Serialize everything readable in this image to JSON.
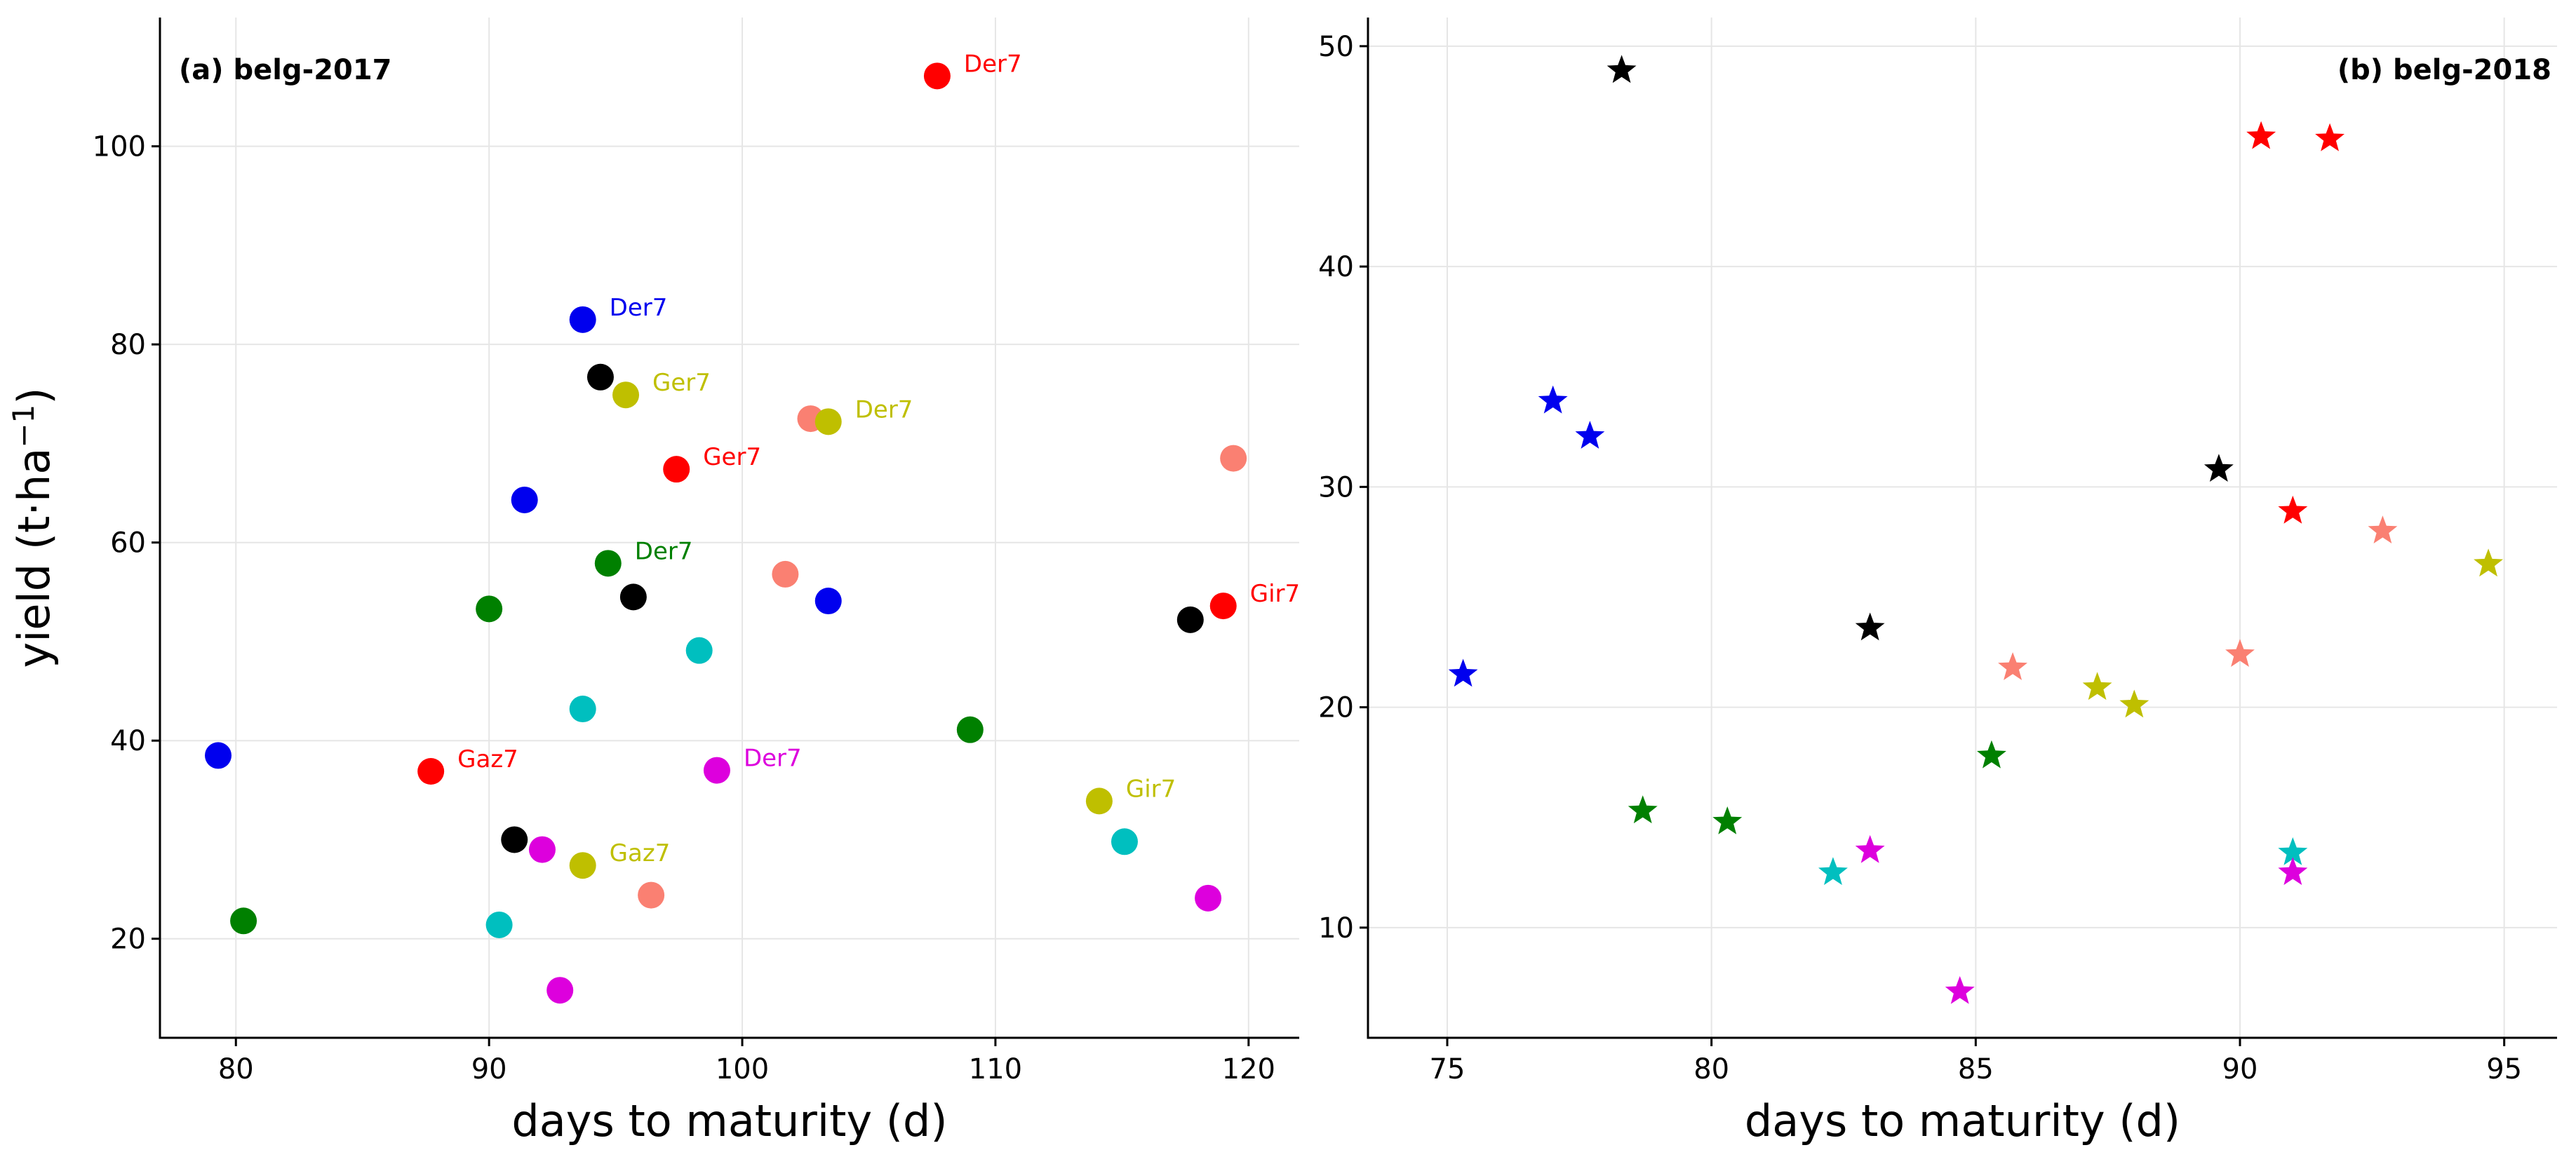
{
  "chart_data": [
    {
      "type": "scatter",
      "title": "(a) belg-2017",
      "xlabel": "days to maturity (d)",
      "ylabel": "yield (t·ha",
      "ylabel_sup": "−1",
      "ylabel_close": ")",
      "xlim": [
        77,
        122
      ],
      "ylim": [
        10,
        113
      ],
      "xticks": [
        80,
        90,
        100,
        110,
        120
      ],
      "yticks": [
        20,
        40,
        60,
        80,
        100
      ],
      "marker": "circle",
      "grid": true,
      "points": [
        {
          "x": 79.3,
          "y": 38.5,
          "color": "#0000ee"
        },
        {
          "x": 80.3,
          "y": 21.8,
          "color": "#008000"
        },
        {
          "x": 87.7,
          "y": 36.9,
          "color": "#ff0000",
          "label": "Gaz7"
        },
        {
          "x": 90.0,
          "y": 53.3,
          "color": "#008000"
        },
        {
          "x": 90.4,
          "y": 21.4,
          "color": "#00bfbf"
        },
        {
          "x": 91.0,
          "y": 30.0,
          "color": "#000000"
        },
        {
          "x": 91.4,
          "y": 64.3,
          "color": "#0000ee"
        },
        {
          "x": 92.1,
          "y": 29.0,
          "color": "#dd00dd"
        },
        {
          "x": 92.8,
          "y": 14.8,
          "color": "#dd00dd"
        },
        {
          "x": 93.7,
          "y": 43.2,
          "color": "#00bfbf"
        },
        {
          "x": 93.7,
          "y": 82.5,
          "color": "#0000ee",
          "label": "Der7"
        },
        {
          "x": 93.7,
          "y": 27.4,
          "color": "#bfbf00",
          "label": "Gaz7"
        },
        {
          "x": 94.4,
          "y": 76.7,
          "color": "#000000"
        },
        {
          "x": 94.7,
          "y": 57.9,
          "color": "#008000",
          "label": "Der7"
        },
        {
          "x": 95.4,
          "y": 74.9,
          "color": "#bfbf00",
          "label": "Ger7"
        },
        {
          "x": 95.7,
          "y": 54.5,
          "color": "#000000"
        },
        {
          "x": 96.4,
          "y": 24.4,
          "color": "#fa8072"
        },
        {
          "x": 97.4,
          "y": 67.4,
          "color": "#ff0000",
          "label": "Ger7"
        },
        {
          "x": 98.3,
          "y": 49.1,
          "color": "#00bfbf"
        },
        {
          "x": 99.0,
          "y": 37.0,
          "color": "#dd00dd",
          "label": "Der7"
        },
        {
          "x": 101.7,
          "y": 56.8,
          "color": "#fa8072"
        },
        {
          "x": 102.7,
          "y": 72.5,
          "color": "#fa8072"
        },
        {
          "x": 103.4,
          "y": 72.2,
          "color": "#bfbf00",
          "label": "Der7"
        },
        {
          "x": 103.4,
          "y": 54.1,
          "color": "#0000ee"
        },
        {
          "x": 107.7,
          "y": 107.1,
          "color": "#ff0000",
          "label": "Der7"
        },
        {
          "x": 109.0,
          "y": 41.1,
          "color": "#008000"
        },
        {
          "x": 114.1,
          "y": 33.9,
          "color": "#bfbf00",
          "label": "Gir7"
        },
        {
          "x": 115.1,
          "y": 29.8,
          "color": "#00bfbf"
        },
        {
          "x": 117.7,
          "y": 52.2,
          "color": "#000000"
        },
        {
          "x": 118.4,
          "y": 24.1,
          "color": "#dd00dd"
        },
        {
          "x": 119.0,
          "y": 53.6,
          "color": "#ff0000",
          "label": "Gir7"
        },
        {
          "x": 119.4,
          "y": 68.5,
          "color": "#fa8072"
        }
      ]
    },
    {
      "type": "scatter",
      "title": "(b) belg-2018",
      "xlabel": "days to maturity (d)",
      "xlim": [
        73.5,
        96
      ],
      "ylim": [
        5,
        51.3
      ],
      "xticks": [
        75,
        80,
        85,
        90,
        95
      ],
      "yticks": [
        10,
        20,
        30,
        40,
        50
      ],
      "marker": "star",
      "grid": true,
      "points": [
        {
          "x": 75.3,
          "y": 21.5,
          "color": "#0000ee"
        },
        {
          "x": 77.0,
          "y": 33.9,
          "color": "#0000ee"
        },
        {
          "x": 77.7,
          "y": 32.3,
          "color": "#0000ee"
        },
        {
          "x": 78.3,
          "y": 48.9,
          "color": "#000000"
        },
        {
          "x": 78.7,
          "y": 15.3,
          "color": "#008000"
        },
        {
          "x": 80.3,
          "y": 14.8,
          "color": "#008000"
        },
        {
          "x": 82.3,
          "y": 12.5,
          "color": "#00bfbf"
        },
        {
          "x": 83.0,
          "y": 23.6,
          "color": "#000000"
        },
        {
          "x": 83.0,
          "y": 13.5,
          "color": "#dd00dd"
        },
        {
          "x": 84.7,
          "y": 7.1,
          "color": "#dd00dd"
        },
        {
          "x": 85.3,
          "y": 17.8,
          "color": "#008000"
        },
        {
          "x": 85.7,
          "y": 21.8,
          "color": "#fa8072"
        },
        {
          "x": 87.3,
          "y": 20.9,
          "color": "#bfbf00"
        },
        {
          "x": 88.0,
          "y": 20.1,
          "color": "#bfbf00"
        },
        {
          "x": 89.6,
          "y": 30.8,
          "color": "#000000"
        },
        {
          "x": 90.0,
          "y": 22.4,
          "color": "#fa8072"
        },
        {
          "x": 90.4,
          "y": 45.9,
          "color": "#ff0000"
        },
        {
          "x": 91.0,
          "y": 28.9,
          "color": "#ff0000"
        },
        {
          "x": 91.0,
          "y": 13.4,
          "color": "#00bfbf"
        },
        {
          "x": 91.0,
          "y": 12.5,
          "color": "#dd00dd"
        },
        {
          "x": 91.7,
          "y": 45.8,
          "color": "#ff0000"
        },
        {
          "x": 92.7,
          "y": 28.0,
          "color": "#fa8072"
        },
        {
          "x": 94.7,
          "y": 26.5,
          "color": "#bfbf00"
        }
      ]
    }
  ]
}
